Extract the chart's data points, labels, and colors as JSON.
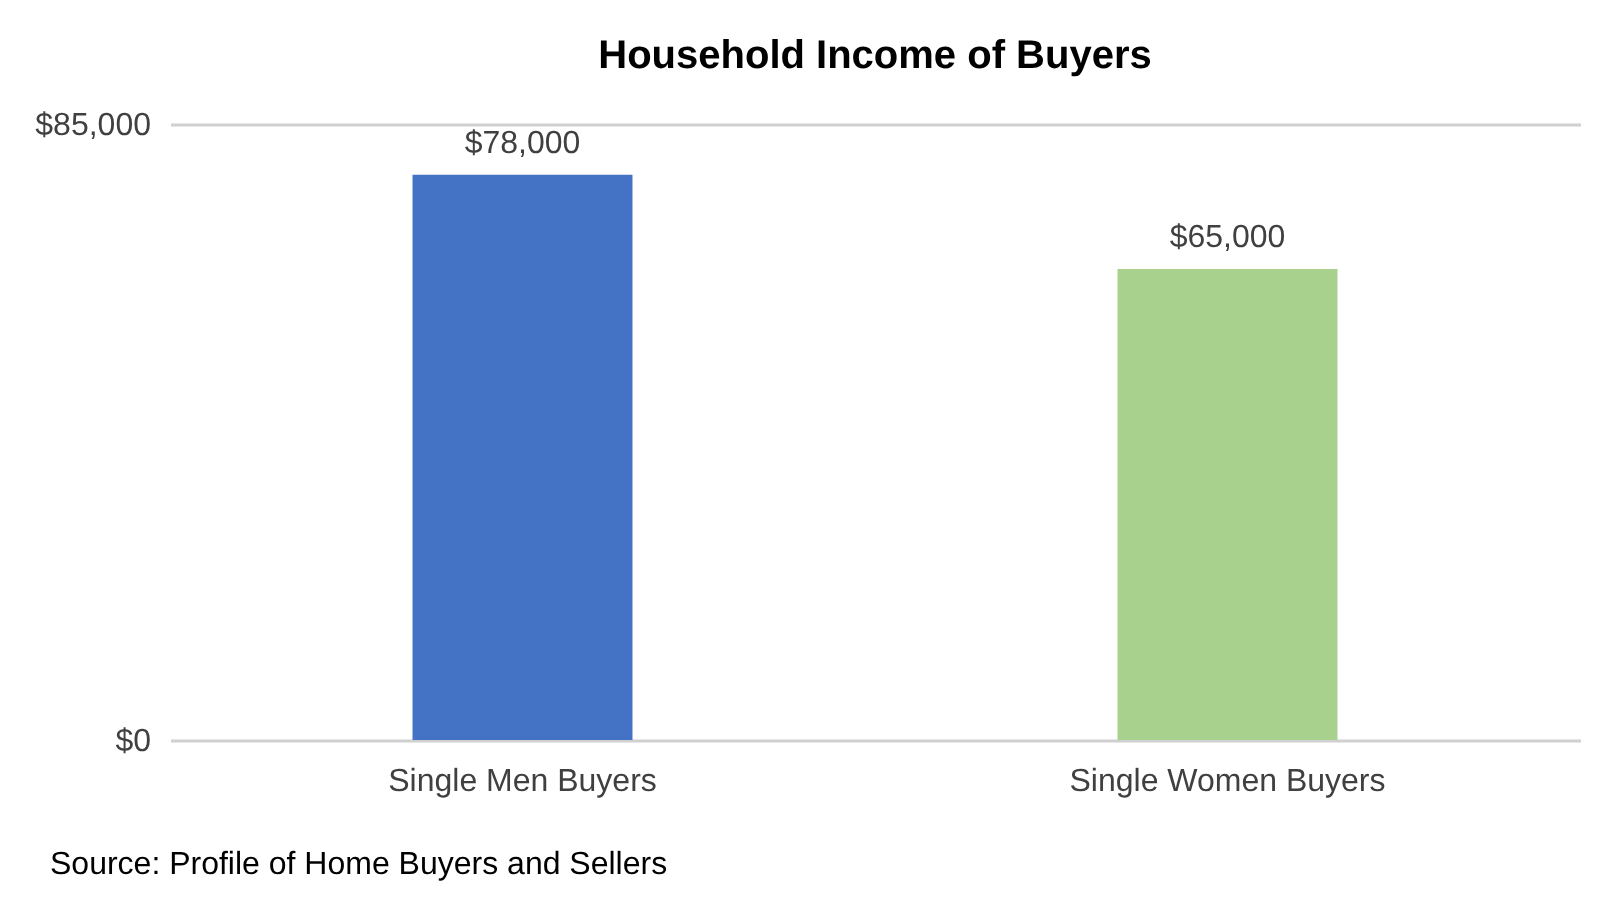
{
  "chart_data": {
    "type": "bar",
    "title": "Household Income of Buyers",
    "categories": [
      "Single Men Buyers",
      "Single Women Buyers"
    ],
    "values": [
      78000,
      65000
    ],
    "colors": [
      "#4472c4",
      "#a9d18e"
    ],
    "value_labels": [
      "$78,000",
      "$65,000"
    ],
    "ylim": [
      0,
      85000
    ],
    "yticks": [
      {
        "value": 0,
        "label": "$0"
      },
      {
        "value": 85000,
        "label": "$85,000"
      }
    ],
    "annotations": [
      "Source: Profile of Home Buyers and Sellers"
    ]
  }
}
